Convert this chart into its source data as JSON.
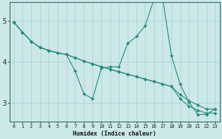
{
  "xlabel": "Humidex (Indice chaleur)",
  "background_color": "#cce8e8",
  "grid_color": "#b0d8d8",
  "line_color": "#2a8a7a",
  "marker_color": "#2a8a7a",
  "xlim": [
    -0.5,
    23.5
  ],
  "ylim": [
    2.55,
    5.45
  ],
  "yticks": [
    3,
    4,
    5
  ],
  "xticks": [
    0,
    1,
    2,
    3,
    4,
    5,
    6,
    7,
    8,
    9,
    10,
    11,
    12,
    13,
    14,
    15,
    16,
    17,
    18,
    19,
    20,
    21,
    22,
    23
  ],
  "series": [
    {
      "x": [
        0,
        1,
        2,
        3,
        4,
        5,
        6,
        7,
        8,
        9,
        10,
        11,
        12,
        13,
        14,
        15,
        16,
        17,
        18,
        19,
        20,
        21,
        22,
        23
      ],
      "y": [
        4.97,
        4.72,
        4.5,
        4.35,
        4.28,
        4.22,
        4.18,
        3.78,
        3.22,
        3.1,
        3.85,
        3.88,
        3.88,
        4.45,
        4.62,
        4.88,
        5.52,
        5.55,
        4.15,
        3.45,
        3.02,
        2.72,
        2.72,
        2.85
      ]
    },
    {
      "x": [
        0,
        1,
        2,
        3,
        4,
        5,
        6,
        7,
        8,
        9,
        10,
        11,
        12,
        13,
        14,
        15,
        16,
        17,
        18,
        19,
        20,
        21,
        22,
        23
      ],
      "y": [
        4.97,
        4.72,
        4.5,
        4.35,
        4.28,
        4.22,
        4.18,
        4.1,
        4.02,
        3.95,
        3.88,
        3.82,
        3.76,
        3.7,
        3.64,
        3.58,
        3.52,
        3.46,
        3.4,
        3.2,
        3.05,
        2.95,
        2.85,
        2.85
      ]
    },
    {
      "x": [
        0,
        1,
        2,
        3,
        4,
        5,
        6,
        7,
        8,
        9,
        10,
        11,
        12,
        13,
        14,
        15,
        16,
        17,
        18,
        19,
        20,
        21,
        22,
        23
      ],
      "y": [
        4.97,
        4.72,
        4.5,
        4.35,
        4.28,
        4.22,
        4.18,
        4.1,
        4.02,
        3.95,
        3.88,
        3.82,
        3.76,
        3.7,
        3.64,
        3.58,
        3.52,
        3.46,
        3.4,
        3.1,
        2.92,
        2.82,
        2.75,
        2.75
      ]
    }
  ]
}
